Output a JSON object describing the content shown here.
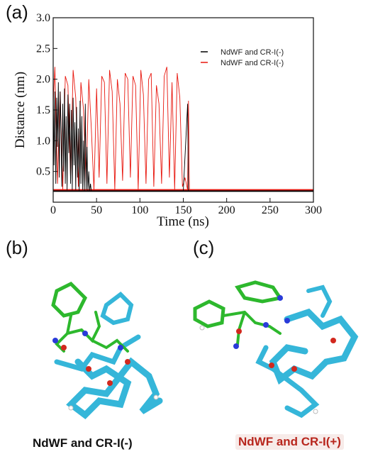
{
  "panels": {
    "a": "(a)",
    "b": "(b)",
    "c": "(c)"
  },
  "captions": {
    "b": "NdWF and CR-I(-)",
    "c": "NdWF and CR-I(+)"
  },
  "chart_data": {
    "type": "line",
    "xlabel": "Time (ns)",
    "ylabel": "Distance (nm)",
    "xlim": [
      0,
      300
    ],
    "ylim": [
      0,
      3.0
    ],
    "xticks": [
      "0",
      "50",
      "100",
      "150",
      "200",
      "250",
      "300"
    ],
    "yticks": [
      "0.5",
      "1.0",
      "1.5",
      "2.0",
      "2.5",
      "3.0"
    ],
    "grid": false,
    "legend_position": "top-right",
    "series": [
      {
        "name": "NdWF and CR-I(-)",
        "color": "#000000",
        "baseline": 0.18,
        "x": [
          0,
          1,
          2,
          3,
          4,
          5,
          6,
          7,
          8,
          9,
          10,
          11,
          12,
          13,
          14,
          15,
          16,
          17,
          18,
          19,
          20,
          21,
          22,
          23,
          24,
          25,
          26,
          27,
          28,
          29,
          30,
          31,
          32,
          33,
          34,
          35,
          36,
          37,
          38,
          39,
          40,
          41,
          42,
          43,
          44,
          45,
          50,
          100,
          150,
          155,
          156,
          157,
          160,
          200,
          250,
          300
        ],
        "values": [
          1.9,
          0.6,
          1.8,
          0.3,
          1.7,
          0.9,
          1.95,
          0.4,
          1.8,
          1.2,
          0.25,
          1.6,
          0.5,
          1.85,
          0.3,
          1.4,
          0.2,
          1.75,
          0.8,
          1.6,
          0.3,
          1.5,
          0.2,
          1.7,
          0.6,
          1.3,
          0.2,
          1.55,
          0.4,
          1.2,
          0.18,
          1.65,
          0.3,
          1.4,
          0.2,
          1.0,
          0.18,
          1.6,
          0.2,
          0.9,
          0.18,
          0.5,
          0.18,
          0.3,
          0.18,
          0.18,
          0.18,
          0.18,
          0.18,
          1.6,
          0.18,
          0.18,
          0.18,
          0.18,
          0.18,
          0.18
        ]
      },
      {
        "name": "NdWF and CR-I(-)",
        "color": "#e8170e",
        "baseline": 0.2,
        "x": [
          0,
          2,
          5,
          8,
          11,
          14,
          17,
          20,
          23,
          26,
          29,
          32,
          35,
          38,
          41,
          44,
          47,
          50,
          53,
          56,
          59,
          62,
          65,
          68,
          71,
          74,
          77,
          80,
          83,
          86,
          89,
          92,
          95,
          98,
          101,
          104,
          107,
          110,
          113,
          116,
          119,
          122,
          125,
          128,
          131,
          134,
          137,
          140,
          143,
          146,
          149,
          152,
          155,
          156,
          157,
          160,
          200,
          250,
          300
        ],
        "values": [
          1.6,
          2.2,
          0.3,
          1.8,
          0.2,
          2.05,
          1.9,
          0.4,
          2.15,
          1.7,
          0.25,
          1.95,
          1.5,
          0.3,
          2.0,
          1.2,
          0.2,
          1.85,
          0.4,
          2.05,
          1.95,
          0.3,
          2.15,
          1.8,
          0.2,
          2.0,
          1.6,
          0.35,
          2.1,
          2.0,
          0.4,
          2.05,
          1.9,
          0.2,
          2.15,
          1.75,
          0.3,
          2.0,
          2.1,
          0.25,
          1.9,
          1.6,
          0.3,
          2.05,
          2.2,
          0.4,
          1.95,
          0.2,
          2.1,
          1.7,
          0.25,
          0.4,
          0.2,
          1.65,
          0.2,
          0.2,
          0.2,
          0.2,
          0.2
        ]
      }
    ]
  }
}
